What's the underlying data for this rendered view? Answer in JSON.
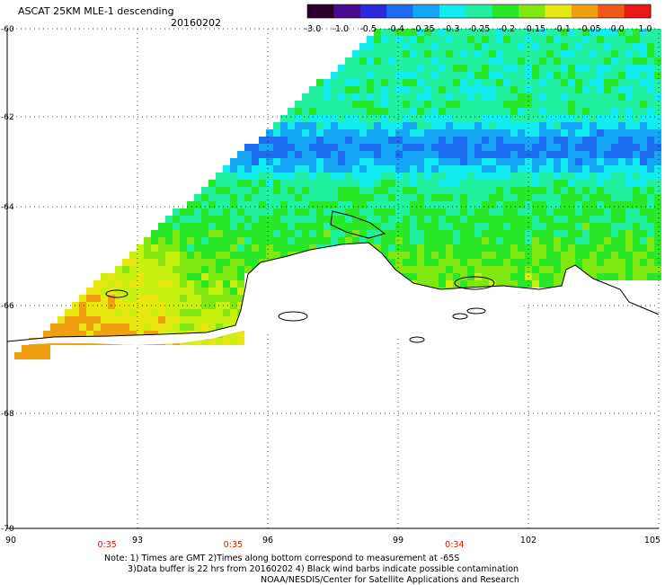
{
  "header": {
    "title": "ASCAT 25KM MLE-1 descending",
    "date": "20160202"
  },
  "colorbar": {
    "labels": [
      "-3.0",
      "-1.0",
      "-0.5",
      "-0.4",
      "-0.35",
      "-0.3",
      "-0.25",
      "-0.2",
      "-0.15",
      "-0.1",
      "-0.05",
      "0.0",
      "1.0"
    ],
    "colors": [
      "#2a002a",
      "#4a0c8c",
      "#2a2adc",
      "#1e6cf0",
      "#14a6f4",
      "#10ecf0",
      "#20f0a0",
      "#28e828",
      "#80e810",
      "#e8e810",
      "#f0a010",
      "#f05818",
      "#e81818"
    ]
  },
  "map": {
    "lat_labels": [
      "-60",
      "-62",
      "-64",
      "-66",
      "-68",
      "-70"
    ],
    "lon_labels": [
      "90",
      "93",
      "96",
      "99",
      "102",
      "105"
    ],
    "pass_times": [
      {
        "label": "0:35",
        "lon": 92.3
      },
      {
        "label": "0:35",
        "lon": 95.2
      },
      {
        "label": "0:34",
        "lon": 100.3
      }
    ]
  },
  "notes": {
    "line1": "Note: 1) Times are GMT 2)Times along bottom correspond to measurement at -65S",
    "line2": "3)Data buffer is 22 hrs from 20160202 4) Black wind barbs indicate possible contamination",
    "line3": "NOAA/NESDIS/Center for Satellite Applications and Research"
  }
}
